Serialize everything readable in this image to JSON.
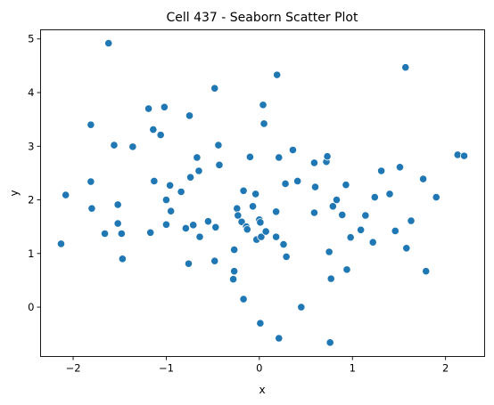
{
  "chart_data": {
    "type": "scatter",
    "title": "Cell 437 - Seaborn Scatter Plot",
    "xlabel": "x",
    "ylabel": "y",
    "xlim": [
      -2.35,
      2.42
    ],
    "ylim": [
      -0.92,
      5.17
    ],
    "xticks": [
      -2,
      -1,
      0,
      1,
      2
    ],
    "yticks": [
      0,
      1,
      2,
      3,
      4,
      5
    ],
    "grid": false,
    "color": "#1f77b4",
    "series": [
      {
        "points": [
          [
            -2.13,
            1.18
          ],
          [
            -2.08,
            2.09
          ],
          [
            -1.81,
            3.4
          ],
          [
            -1.81,
            2.34
          ],
          [
            -1.8,
            1.84
          ],
          [
            -1.66,
            1.37
          ],
          [
            -1.62,
            4.92
          ],
          [
            -1.56,
            3.02
          ],
          [
            -1.52,
            1.91
          ],
          [
            -1.52,
            1.56
          ],
          [
            -1.48,
            1.37
          ],
          [
            -1.47,
            0.9
          ],
          [
            -1.36,
            2.99
          ],
          [
            -1.19,
            3.7
          ],
          [
            -1.17,
            1.39
          ],
          [
            -1.14,
            3.31
          ],
          [
            -1.13,
            2.35
          ],
          [
            -1.06,
            3.21
          ],
          [
            -1.02,
            3.73
          ],
          [
            -1.0,
            2.0
          ],
          [
            -1.0,
            1.54
          ],
          [
            -0.96,
            2.27
          ],
          [
            -0.95,
            1.79
          ],
          [
            -0.84,
            2.15
          ],
          [
            -0.79,
            1.47
          ],
          [
            -0.76,
            0.81
          ],
          [
            -0.75,
            3.57
          ],
          [
            -0.74,
            2.42
          ],
          [
            -0.71,
            1.53
          ],
          [
            -0.67,
            2.79
          ],
          [
            -0.65,
            2.54
          ],
          [
            -0.64,
            1.31
          ],
          [
            -0.55,
            1.6
          ],
          [
            -0.48,
            4.08
          ],
          [
            -0.48,
            0.86
          ],
          [
            -0.47,
            1.49
          ],
          [
            -0.44,
            3.02
          ],
          [
            -0.43,
            2.65
          ],
          [
            -0.28,
            0.52
          ],
          [
            -0.27,
            0.67
          ],
          [
            -0.27,
            1.07
          ],
          [
            -0.24,
            1.84
          ],
          [
            -0.23,
            1.71
          ],
          [
            -0.19,
            1.59
          ],
          [
            -0.17,
            2.17
          ],
          [
            -0.17,
            0.15
          ],
          [
            -0.14,
            1.5
          ],
          [
            -0.13,
            1.45
          ],
          [
            -0.1,
            2.8
          ],
          [
            -0.07,
            1.88
          ],
          [
            -0.04,
            2.11
          ],
          [
            -0.03,
            1.26
          ],
          [
            0.0,
            1.63
          ],
          [
            0.01,
            1.58
          ],
          [
            0.01,
            -0.3
          ],
          [
            0.02,
            1.31
          ],
          [
            0.04,
            3.77
          ],
          [
            0.05,
            3.42
          ],
          [
            0.07,
            1.41
          ],
          [
            0.18,
            1.78
          ],
          [
            0.18,
            1.31
          ],
          [
            0.19,
            4.33
          ],
          [
            0.21,
            2.79
          ],
          [
            0.21,
            -0.58
          ],
          [
            0.26,
            1.17
          ],
          [
            0.28,
            2.3
          ],
          [
            0.29,
            0.94
          ],
          [
            0.36,
            2.93
          ],
          [
            0.41,
            2.35
          ],
          [
            0.45,
            0.0
          ],
          [
            0.59,
            2.69
          ],
          [
            0.59,
            1.76
          ],
          [
            0.6,
            2.24
          ],
          [
            0.72,
            2.71
          ],
          [
            0.73,
            2.81
          ],
          [
            0.75,
            1.03
          ],
          [
            0.76,
            -0.66
          ],
          [
            0.77,
            0.53
          ],
          [
            0.79,
            1.88
          ],
          [
            0.83,
            2.0
          ],
          [
            0.89,
            1.72
          ],
          [
            0.93,
            2.28
          ],
          [
            0.94,
            0.7
          ],
          [
            0.98,
            1.3
          ],
          [
            1.09,
            1.44
          ],
          [
            1.14,
            1.71
          ],
          [
            1.22,
            1.21
          ],
          [
            1.24,
            2.05
          ],
          [
            1.31,
            2.54
          ],
          [
            1.4,
            2.11
          ],
          [
            1.46,
            1.42
          ],
          [
            1.51,
            2.61
          ],
          [
            1.57,
            4.47
          ],
          [
            1.58,
            1.1
          ],
          [
            1.63,
            1.61
          ],
          [
            1.76,
            2.39
          ],
          [
            1.79,
            0.67
          ],
          [
            1.9,
            2.05
          ],
          [
            2.13,
            2.84
          ],
          [
            2.2,
            2.82
          ]
        ]
      }
    ]
  }
}
